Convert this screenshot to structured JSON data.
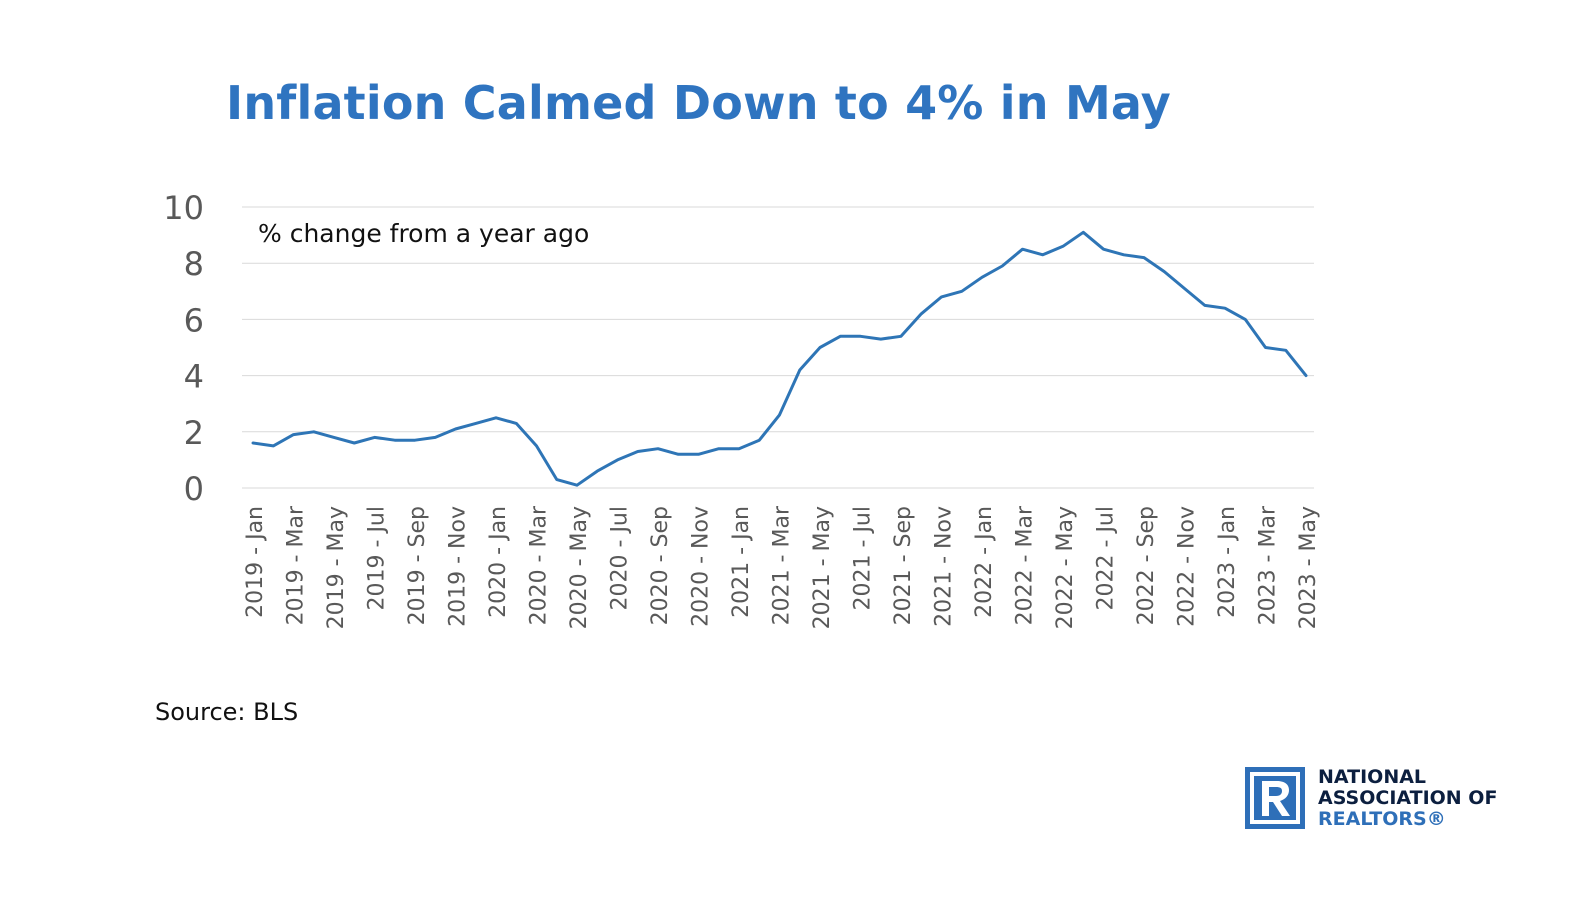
{
  "title": "Inflation Calmed Down to 4% in May",
  "source": "Source: BLS",
  "logo": {
    "line1": "NATIONAL",
    "line2": "ASSOCIATION OF",
    "line3": "REALTORS®"
  },
  "colors": {
    "title": "#2f74c0",
    "line": "#2e75b6",
    "grid": "#d9d9d9",
    "logo_blue": "#2e6fb8",
    "logo_dark": "#0c1f3f"
  },
  "chart_data": {
    "type": "line",
    "annotation": "% change from a year ago",
    "ylim": [
      0,
      10
    ],
    "yticks": [
      0,
      2,
      4,
      6,
      8,
      10
    ],
    "grid": true,
    "x": [
      "2019 - Jan",
      "2019 - Feb",
      "2019 - Mar",
      "2019 - Apr",
      "2019 - May",
      "2019 - Jun",
      "2019 - Jul",
      "2019 - Aug",
      "2019 - Sep",
      "2019 - Oct",
      "2019 - Nov",
      "2019 - Dec",
      "2020 - Jan",
      "2020 - Feb",
      "2020 - Mar",
      "2020 - Apr",
      "2020 - May",
      "2020 - Jun",
      "2020 - Jul",
      "2020 - Aug",
      "2020 - Sep",
      "2020 - Oct",
      "2020 - Nov",
      "2020 - Dec",
      "2021 - Jan",
      "2021 - Feb",
      "2021 - Mar",
      "2021 - Apr",
      "2021 - May",
      "2021 - Jun",
      "2021 - Jul",
      "2021 - Aug",
      "2021 - Sep",
      "2021 - Oct",
      "2021 - Nov",
      "2021 - Dec",
      "2022 - Jan",
      "2022 - Feb",
      "2022 - Mar",
      "2022 - Apr",
      "2022 - May",
      "2022 - Jun",
      "2022 - Jul",
      "2022 - Aug",
      "2022 - Sep",
      "2022 - Oct",
      "2022 - Nov",
      "2022 - Dec",
      "2023 - Jan",
      "2023 - Feb",
      "2023 - Mar",
      "2023 - Apr",
      "2023 - May"
    ],
    "xticks": [
      "2019 - Jan",
      "2019 - Mar",
      "2019 - May",
      "2019 - Jul",
      "2019 - Sep",
      "2019 - Nov",
      "2020 - Jan",
      "2020 - Mar",
      "2020 - May",
      "2020 - Jul",
      "2020 - Sep",
      "2020 - Nov",
      "2021 - Jan",
      "2021 - Mar",
      "2021 - May",
      "2021 - Jul",
      "2021 - Sep",
      "2021 - Nov",
      "2022 - Jan",
      "2022 - Mar",
      "2022 - May",
      "2022 - Jul",
      "2022 - Sep",
      "2022 - Nov",
      "2023 - Jan",
      "2023 - Mar",
      "2023 - May"
    ],
    "series": [
      {
        "values": [
          1.6,
          1.5,
          1.9,
          2.0,
          1.8,
          1.6,
          1.8,
          1.7,
          1.7,
          1.8,
          2.1,
          2.3,
          2.5,
          2.3,
          1.5,
          0.3,
          0.1,
          0.6,
          1.0,
          1.3,
          1.4,
          1.2,
          1.2,
          1.4,
          1.4,
          1.7,
          2.6,
          4.2,
          5.0,
          5.4,
          5.4,
          5.3,
          5.4,
          6.2,
          6.8,
          7.0,
          7.5,
          7.9,
          8.5,
          8.3,
          8.6,
          9.1,
          8.5,
          8.3,
          8.2,
          7.7,
          7.1,
          6.5,
          6.4,
          6.0,
          5.0,
          4.9,
          4.0
        ]
      }
    ]
  }
}
